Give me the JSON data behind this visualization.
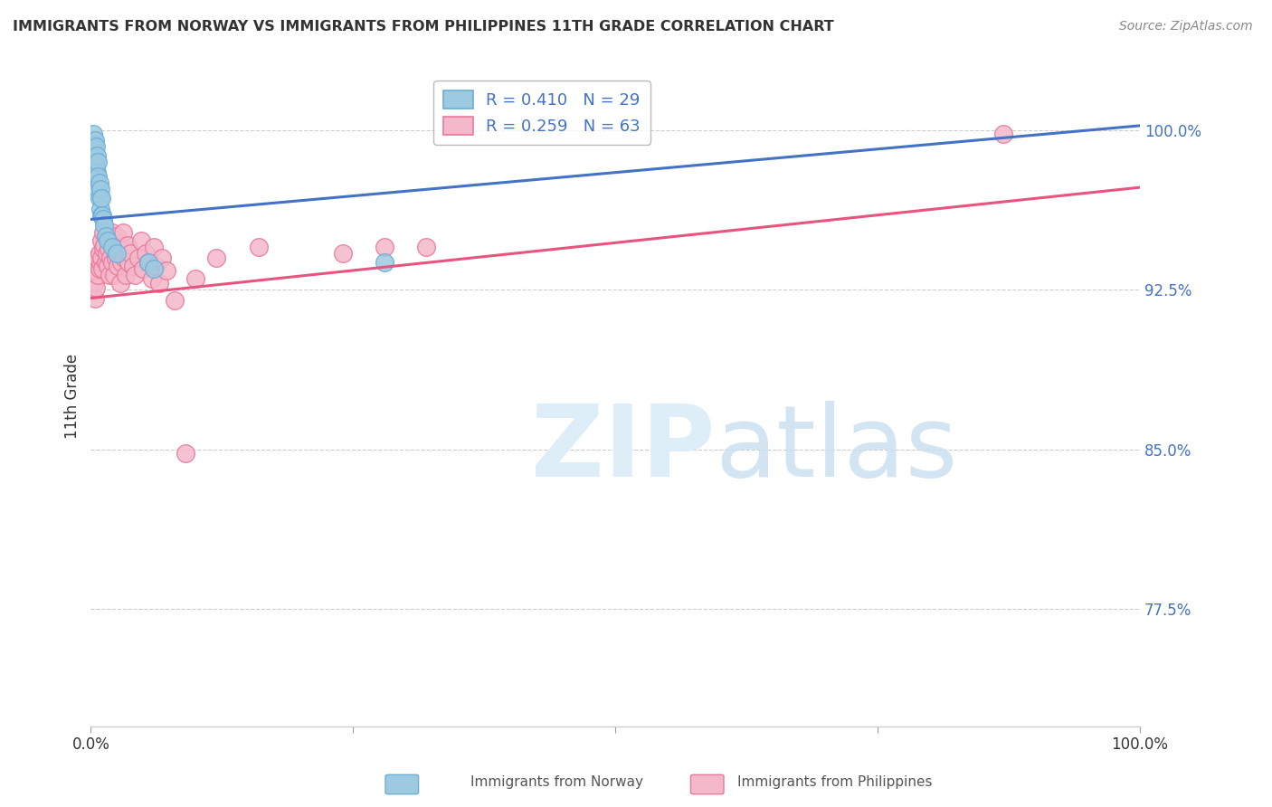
{
  "title": "IMMIGRANTS FROM NORWAY VS IMMIGRANTS FROM PHILIPPINES 11TH GRADE CORRELATION CHART",
  "source": "Source: ZipAtlas.com",
  "ylabel": "11th Grade",
  "norway_color": "#6baed6",
  "norway_fill": "#9ecae1",
  "philippines_color": "#e8799a",
  "philippines_fill": "#f4b8ca",
  "norway_R": 0.41,
  "norway_N": 29,
  "philippines_R": 0.259,
  "philippines_N": 63,
  "bottom_label_norway": "Immigrants from Norway",
  "bottom_label_philippines": "Immigrants from Philippines",
  "yticks": [
    0.775,
    0.85,
    0.925,
    1.0
  ],
  "ytick_labels": [
    "77.5%",
    "85.0%",
    "92.5%",
    "100.0%"
  ],
  "norway_x": [
    0.002,
    0.003,
    0.003,
    0.004,
    0.004,
    0.005,
    0.005,
    0.005,
    0.006,
    0.006,
    0.007,
    0.007,
    0.007,
    0.008,
    0.008,
    0.009,
    0.009,
    0.01,
    0.01,
    0.011,
    0.012,
    0.013,
    0.014,
    0.016,
    0.02,
    0.025,
    0.055,
    0.06,
    0.28
  ],
  "norway_y": [
    0.998,
    0.993,
    0.988,
    0.995,
    0.985,
    0.992,
    0.983,
    0.976,
    0.988,
    0.98,
    0.985,
    0.978,
    0.972,
    0.975,
    0.968,
    0.972,
    0.963,
    0.968,
    0.96,
    0.96,
    0.958,
    0.955,
    0.95,
    0.948,
    0.945,
    0.942,
    0.938,
    0.935,
    0.938
  ],
  "philippines_x": [
    0.003,
    0.004,
    0.005,
    0.005,
    0.006,
    0.007,
    0.008,
    0.008,
    0.009,
    0.01,
    0.01,
    0.011,
    0.012,
    0.012,
    0.013,
    0.014,
    0.015,
    0.015,
    0.016,
    0.017,
    0.018,
    0.019,
    0.02,
    0.02,
    0.021,
    0.022,
    0.023,
    0.024,
    0.025,
    0.025,
    0.026,
    0.027,
    0.028,
    0.029,
    0.03,
    0.031,
    0.032,
    0.033,
    0.035,
    0.036,
    0.038,
    0.04,
    0.042,
    0.045,
    0.048,
    0.05,
    0.052,
    0.055,
    0.058,
    0.06,
    0.062,
    0.065,
    0.068,
    0.072,
    0.08,
    0.09,
    0.1,
    0.12,
    0.16,
    0.24,
    0.28,
    0.32,
    0.87
  ],
  "philippines_y": [
    0.928,
    0.921,
    0.934,
    0.926,
    0.94,
    0.932,
    0.942,
    0.935,
    0.938,
    0.948,
    0.94,
    0.935,
    0.952,
    0.944,
    0.946,
    0.938,
    0.95,
    0.942,
    0.936,
    0.944,
    0.932,
    0.94,
    0.952,
    0.938,
    0.945,
    0.932,
    0.948,
    0.94,
    0.95,
    0.942,
    0.936,
    0.944,
    0.928,
    0.938,
    0.945,
    0.952,
    0.94,
    0.932,
    0.946,
    0.938,
    0.942,
    0.936,
    0.932,
    0.94,
    0.948,
    0.935,
    0.942,
    0.938,
    0.93,
    0.945,
    0.936,
    0.928,
    0.94,
    0.934,
    0.92,
    0.848,
    0.93,
    0.94,
    0.945,
    0.942,
    0.945,
    0.945,
    0.998
  ]
}
